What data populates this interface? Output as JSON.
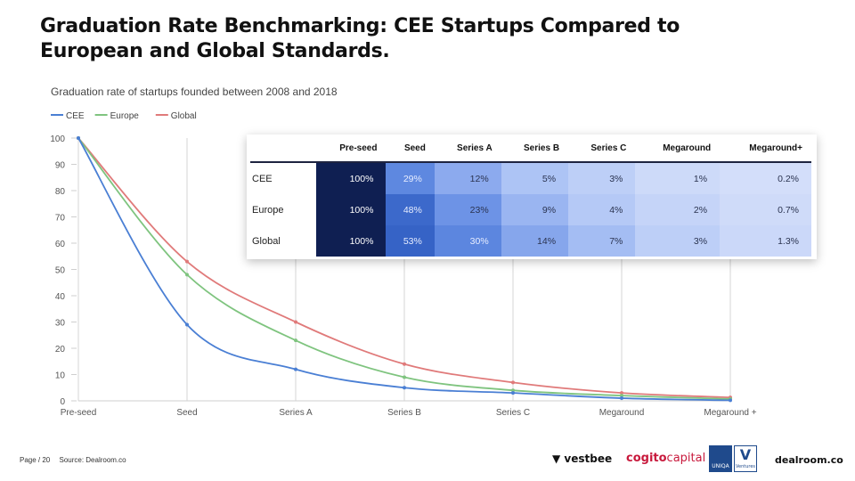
{
  "title": "Graduation Rate Benchmarking: CEE Startups Compared to European and Global Standards.",
  "colors": {
    "CEE": "#4a7fd4",
    "Europe": "#7fc47f",
    "Global": "#e07a7a"
  },
  "chart_data": {
    "type": "line",
    "title": "Graduation rate of startups founded between 2008 and 2018",
    "categories": [
      "Pre-seed",
      "Seed",
      "Series A",
      "Series B",
      "Series C",
      "Megaround",
      "Megaround +"
    ],
    "series": [
      {
        "name": "CEE",
        "values": [
          100,
          29,
          12,
          5,
          3,
          1,
          0.2
        ]
      },
      {
        "name": "Europe",
        "values": [
          100,
          48,
          23,
          9,
          4,
          2,
          0.7
        ]
      },
      {
        "name": "Global",
        "values": [
          100,
          53,
          30,
          14,
          7,
          3,
          1.3
        ]
      }
    ],
    "ylim": [
      0,
      100
    ],
    "yticks": [
      0,
      10,
      20,
      30,
      40,
      50,
      60,
      70,
      80,
      90,
      100
    ],
    "legend": "top-left",
    "grid": "vertical"
  },
  "table": {
    "headers": [
      "",
      "Pre-seed",
      "Seed",
      "Series A",
      "Series B",
      "Series C",
      "Megaround",
      "Megaround+"
    ],
    "rows": [
      {
        "label": "CEE",
        "cells": [
          "100%",
          "29%",
          "12%",
          "5%",
          "3%",
          "1%",
          "0.2%"
        ],
        "values": [
          100,
          29,
          12,
          5,
          3,
          1,
          0.2
        ]
      },
      {
        "label": "Europe",
        "cells": [
          "100%",
          "48%",
          "23%",
          "9%",
          "4%",
          "2%",
          "0.7%"
        ],
        "values": [
          100,
          48,
          23,
          9,
          4,
          2,
          0.7
        ]
      },
      {
        "label": "Global",
        "cells": [
          "100%",
          "53%",
          "30%",
          "14%",
          "7%",
          "3%",
          "1.3%"
        ],
        "values": [
          100,
          53,
          30,
          14,
          7,
          3,
          1.3
        ]
      }
    ]
  },
  "footer": {
    "page": "Page / 20",
    "source": "Source: Dealroom.co"
  },
  "logos": {
    "vestbee": "vestbee",
    "cogito_a": "cogito",
    "cogito_b": "capital",
    "uniqa": "UNIQA",
    "uniqa_v": "V",
    "uniqa_ventures": "Ventures",
    "dealroom": "dealroom.co"
  }
}
